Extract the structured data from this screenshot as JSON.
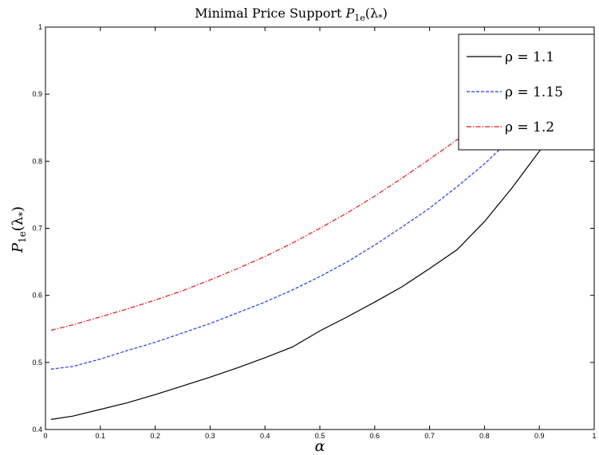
{
  "chart_data": {
    "type": "line",
    "title": "Minimal Price Support P1e(λ*)",
    "title_parts": {
      "main": "Minimal Price Support ",
      "sym": "P",
      "sub": "1e",
      "arg": "(λ",
      "arg_sub": "*",
      "close": ")"
    },
    "xlabel": "α",
    "ylabel": "P1e(λ*)",
    "ylabel_parts": {
      "sym": "P",
      "sub": "1e",
      "arg": "(λ",
      "arg_sub": "*",
      "close": ")"
    },
    "xlim": [
      0,
      1
    ],
    "ylim": [
      0.4,
      1
    ],
    "x_ticks": [
      0,
      0.1,
      0.2,
      0.3,
      0.4,
      0.5,
      0.6,
      0.7,
      0.8,
      0.9,
      1
    ],
    "x_tick_labels": [
      "0",
      "0.1",
      "0.2",
      "0.3",
      "0.4",
      "0.5",
      "0.6",
      "0.7",
      "0.8",
      "0.9",
      "1"
    ],
    "y_ticks": [
      0.4,
      0.5,
      0.6,
      0.7,
      0.8,
      0.9,
      1
    ],
    "y_tick_labels": [
      "0.4",
      "0.5",
      "0.6",
      "0.7",
      "0.8",
      "0.9",
      "1"
    ],
    "grid": false,
    "legend_position": "top-right",
    "x": [
      0.01,
      0.05,
      0.1,
      0.15,
      0.2,
      0.25,
      0.3,
      0.35,
      0.4,
      0.45,
      0.5,
      0.55,
      0.6,
      0.65,
      0.7,
      0.75,
      0.8,
      0.85,
      0.9,
      0.92
    ],
    "series": [
      {
        "name": "ρ = 1.1",
        "color": "#000000",
        "style": "solid",
        "values": [
          0.415,
          0.42,
          0.43,
          0.44,
          0.452,
          0.465,
          0.478,
          0.492,
          0.507,
          0.523,
          0.547,
          0.568,
          0.59,
          0.613,
          0.64,
          0.668,
          0.71,
          0.76,
          0.815,
          0.835
        ]
      },
      {
        "name": "ρ = 1.15",
        "color": "#1f3de0",
        "style": "dashed",
        "values": [
          0.49,
          0.494,
          0.505,
          0.518,
          0.53,
          0.544,
          0.558,
          0.574,
          0.59,
          0.608,
          0.628,
          0.65,
          0.675,
          0.702,
          0.73,
          0.762,
          0.796,
          0.835,
          null,
          null
        ]
      },
      {
        "name": "ρ = 1.2",
        "color": "#e0141e",
        "style": "dashdot",
        "values": [
          0.548,
          0.556,
          0.568,
          0.58,
          0.593,
          0.607,
          0.623,
          0.64,
          0.658,
          0.678,
          0.7,
          0.723,
          0.748,
          0.775,
          0.803,
          0.832,
          0.85,
          null,
          null,
          null
        ]
      }
    ]
  }
}
